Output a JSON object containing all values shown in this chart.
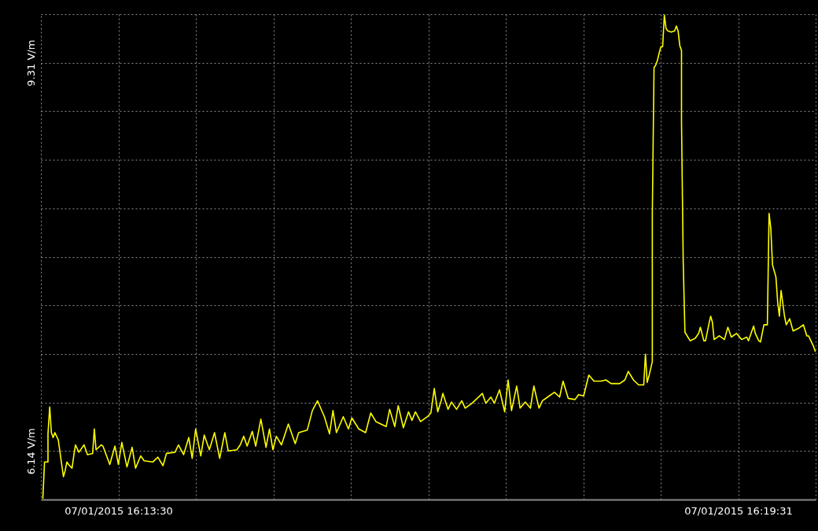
{
  "chart_data": {
    "type": "line",
    "x": [
      "2015-07-01T16:12:46",
      "2015-07-01T16:12:47",
      "2015-07-01T16:12:49",
      "2015-07-01T16:12:49",
      "2015-07-01T16:12:50",
      "2015-07-01T16:12:51",
      "2015-07-01T16:12:52",
      "2015-07-01T16:12:53",
      "2015-07-01T16:12:55",
      "2015-07-01T16:12:56",
      "2015-07-01T16:12:58",
      "2015-07-01T16:12:59",
      "2015-07-01T16:13:00",
      "2015-07-01T16:13:01",
      "2015-07-01T16:13:03",
      "2015-07-01T16:13:04",
      "2015-07-01T16:13:05",
      "2015-07-01T16:13:07",
      "2015-07-01T16:13:10",
      "2015-07-01T16:13:12",
      "2015-07-01T16:13:15",
      "2015-07-01T16:13:16",
      "2015-07-01T16:13:17",
      "2015-07-01T16:13:20",
      "2015-07-01T16:13:21",
      "2015-07-01T16:13:25",
      "2015-07-01T16:13:28",
      "2015-07-01T16:13:30",
      "2015-07-01T16:13:32",
      "2015-07-01T16:13:35",
      "2015-07-01T16:13:38",
      "2015-07-01T16:13:40",
      "2015-07-01T16:13:43",
      "2015-07-01T16:13:45",
      "2015-07-01T16:13:50",
      "2015-07-01T16:13:53",
      "2015-07-01T16:13:56",
      "2015-07-01T16:13:58",
      "2015-07-01T16:14:03",
      "2015-07-01T16:14:05",
      "2015-07-01T16:14:08",
      "2015-07-01T16:14:11",
      "2015-07-01T16:14:13",
      "2015-07-01T16:14:15",
      "2015-07-01T16:14:18",
      "2015-07-01T16:14:20",
      "2015-07-01T16:14:23",
      "2015-07-01T16:14:26",
      "2015-07-01T16:14:29",
      "2015-07-01T16:14:32",
      "2015-07-01T16:14:34",
      "2015-07-01T16:14:39",
      "2015-07-01T16:14:41",
      "2015-07-01T16:14:43",
      "2015-07-01T16:14:45",
      "2015-07-01T16:14:48",
      "2015-07-01T16:14:50",
      "2015-07-01T16:14:53",
      "2015-07-01T16:14:56",
      "2015-07-01T16:14:58",
      "2015-07-01T16:15:00",
      "2015-07-01T16:15:02",
      "2015-07-01T16:15:05",
      "2015-07-01T16:15:09",
      "2015-07-01T16:15:13",
      "2015-07-01T16:15:15",
      "2015-07-01T16:15:20",
      "2015-07-01T16:15:23",
      "2015-07-01T16:15:26",
      "2015-07-01T16:15:30",
      "2015-07-01T16:15:33",
      "2015-07-01T16:15:35",
      "2015-07-01T16:15:37",
      "2015-07-01T16:15:41",
      "2015-07-01T16:15:44",
      "2015-07-01T16:15:46",
      "2015-07-01T16:15:50",
      "2015-07-01T16:15:54",
      "2015-07-01T16:15:57",
      "2015-07-01T16:16:00",
      "2015-07-01T16:16:06",
      "2015-07-01T16:16:08",
      "2015-07-01T16:16:11",
      "2015-07-01T16:16:13",
      "2015-07-01T16:16:16",
      "2015-07-01T16:16:19",
      "2015-07-01T16:16:21",
      "2015-07-01T16:16:23",
      "2015-07-01T16:16:26",
      "2015-07-01T16:16:30",
      "2015-07-01T16:16:32",
      "2015-07-01T16:16:34",
      "2015-07-01T16:16:36",
      "2015-07-01T16:16:38",
      "2015-07-01T16:16:39",
      "2015-07-01T16:16:42",
      "2015-07-01T16:16:44",
      "2015-07-01T16:16:47",
      "2015-07-01T16:16:50",
      "2015-07-01T16:16:52",
      "2015-07-01T16:16:56",
      "2015-07-01T16:17:02",
      "2015-07-01T16:17:04",
      "2015-07-01T16:17:07",
      "2015-07-01T16:17:09",
      "2015-07-01T16:17:12",
      "2015-07-01T16:17:15",
      "2015-07-01T16:17:17",
      "2015-07-01T16:17:19",
      "2015-07-01T16:17:22",
      "2015-07-01T16:17:24",
      "2015-07-01T16:17:27",
      "2015-07-01T16:17:30",
      "2015-07-01T16:17:32",
      "2015-07-01T16:17:35",
      "2015-07-01T16:17:37",
      "2015-07-01T16:17:41",
      "2015-07-01T16:17:44",
      "2015-07-01T16:17:47",
      "2015-07-01T16:17:49",
      "2015-07-01T16:17:52",
      "2015-07-01T16:17:56",
      "2015-07-01T16:17:58",
      "2015-07-01T16:18:01",
      "2015-07-01T16:18:04",
      "2015-07-01T16:18:07",
      "2015-07-01T16:18:11",
      "2015-07-01T16:18:14",
      "2015-07-01T16:18:17",
      "2015-07-01T16:18:22",
      "2015-07-01T16:18:25",
      "2015-07-01T16:18:27",
      "2015-07-01T16:18:30",
      "2015-07-01T16:18:33",
      "2015-07-01T16:18:36",
      "2015-07-01T16:18:37",
      "2015-07-01T16:18:38",
      "2015-07-01T16:18:39",
      "2015-07-01T16:18:41",
      "2015-07-01T16:18:41",
      "2015-07-01T16:18:42",
      "2015-07-01T16:18:43",
      "2015-07-01T16:18:44",
      "2015-07-01T16:18:45",
      "2015-07-01T16:18:46",
      "2015-07-01T16:18:47",
      "2015-07-01T16:18:48",
      "2015-07-01T16:18:49",
      "2015-07-01T16:18:50",
      "2015-07-01T16:18:52",
      "2015-07-01T16:18:54",
      "2015-07-01T16:18:55",
      "2015-07-01T16:18:56",
      "2015-07-01T16:18:57",
      "2015-07-01T16:18:58",
      "2015-07-01T16:18:58",
      "2015-07-01T16:18:59",
      "2015-07-01T16:19:00",
      "2015-07-01T16:19:03",
      "2015-07-01T16:19:06",
      "2015-07-01T16:19:08",
      "2015-07-01T16:19:09",
      "2015-07-01T16:19:11",
      "2015-07-01T16:19:12",
      "2015-07-01T16:19:14",
      "2015-07-01T16:19:15",
      "2015-07-01T16:19:16",
      "2015-07-01T16:19:17",
      "2015-07-01T16:19:20",
      "2015-07-01T16:19:23",
      "2015-07-01T16:19:25",
      "2015-07-01T16:19:27",
      "2015-07-01T16:19:30",
      "2015-07-01T16:19:33",
      "2015-07-01T16:19:36",
      "2015-07-01T16:19:37",
      "2015-07-01T16:19:40",
      "2015-07-01T16:19:41",
      "2015-07-01T16:19:43",
      "2015-07-01T16:19:44",
      "2015-07-01T16:19:46",
      "2015-07-01T16:19:48",
      "2015-07-01T16:19:49",
      "2015-07-01T16:19:50",
      "2015-07-01T16:19:51",
      "2015-07-01T16:19:53",
      "2015-07-01T16:19:54",
      "2015-07-01T16:19:55",
      "2015-07-01T16:19:56",
      "2015-07-01T16:19:58",
      "2015-07-01T16:19:59",
      "2015-07-01T16:20:01",
      "2015-07-01T16:20:03",
      "2015-07-01T16:20:06",
      "2015-07-01T16:20:09",
      "2015-07-01T16:20:11",
      "2015-07-01T16:20:12",
      "2015-07-01T16:20:15",
      "2015-07-01T16:20:16"
    ],
    "series": [
      {
        "color": "#ffff00",
        "values": [
          5.75,
          6.05,
          6.05,
          6.28,
          6.5,
          6.29,
          6.25,
          6.29,
          6.23,
          6.13,
          5.93,
          5.98,
          6.05,
          6.03,
          6.0,
          6.1,
          6.19,
          6.13,
          6.19,
          6.11,
          6.12,
          6.32,
          6.15,
          6.19,
          6.18,
          6.03,
          6.18,
          6.03,
          6.21,
          6.01,
          6.17,
          6.0,
          6.1,
          6.06,
          6.05,
          6.09,
          6.02,
          6.12,
          6.13,
          6.19,
          6.11,
          6.25,
          6.08,
          6.32,
          6.1,
          6.27,
          6.15,
          6.29,
          6.08,
          6.29,
          6.14,
          6.15,
          6.19,
          6.26,
          6.18,
          6.3,
          6.18,
          6.4,
          6.17,
          6.32,
          6.15,
          6.26,
          6.19,
          6.36,
          6.2,
          6.29,
          6.31,
          6.47,
          6.55,
          6.42,
          6.28,
          6.47,
          6.29,
          6.42,
          6.32,
          6.41,
          6.32,
          6.29,
          6.45,
          6.38,
          6.34,
          6.48,
          6.34,
          6.51,
          6.33,
          6.46,
          6.39,
          6.46,
          6.38,
          6.42,
          6.45,
          6.65,
          6.46,
          6.55,
          6.61,
          6.48,
          6.54,
          6.48,
          6.55,
          6.49,
          6.53,
          6.61,
          6.53,
          6.58,
          6.53,
          6.64,
          6.46,
          6.72,
          6.47,
          6.67,
          6.49,
          6.54,
          6.49,
          6.67,
          6.49,
          6.55,
          6.59,
          6.62,
          6.58,
          6.71,
          6.57,
          6.56,
          6.6,
          6.59,
          6.76,
          6.71,
          6.71,
          6.72,
          6.69,
          6.69,
          6.72,
          6.79,
          6.72,
          6.68,
          6.68,
          6.93,
          6.7,
          6.75,
          6.87,
          8.08,
          9.27,
          9.29,
          9.33,
          9.39,
          9.44,
          9.44,
          9.7,
          9.59,
          9.57,
          9.56,
          9.57,
          9.61,
          9.57,
          9.45,
          9.41,
          8.83,
          7.68,
          7.11,
          7.04,
          7.06,
          7.1,
          7.15,
          7.04,
          7.04,
          7.18,
          7.24,
          7.19,
          7.05,
          7.08,
          7.05,
          7.15,
          7.07,
          7.1,
          7.05,
          7.07,
          7.04,
          7.16,
          7.1,
          7.04,
          7.03,
          7.17,
          7.17,
          8.08,
          7.96,
          7.66,
          7.56,
          7.36,
          7.24,
          7.45,
          7.24,
          7.17,
          7.22,
          7.12,
          7.14,
          7.17,
          7.08,
          7.08,
          6.99,
          6.95
        ]
      }
    ],
    "xlim": [
      "2015-07-01T16:12:44.875",
      "2015-07-01T16:20:16.125"
    ],
    "xticks": [
      {
        "value": "2015-07-01T16:13:30",
        "label": "07/01/2015 16:13:30"
      },
      {
        "value": "2015-07-01T16:14:15.125",
        "label": null
      },
      {
        "value": "2015-07-01T16:15:00.250",
        "label": null
      },
      {
        "value": "2015-07-01T16:15:45.375",
        "label": null
      },
      {
        "value": "2015-07-01T16:16:30.500",
        "label": null
      },
      {
        "value": "2015-07-01T16:17:15.625",
        "label": null
      },
      {
        "value": "2015-07-01T16:18:00.750",
        "label": null
      },
      {
        "value": "2015-07-01T16:18:45.875",
        "label": null
      },
      {
        "value": "2015-07-01T16:19:31",
        "label": "07/01/2015 16:19:31"
      }
    ],
    "ylim": [
      5.74375,
      9.70625
    ],
    "yticks": [
      {
        "value": 6.14,
        "label": "6.14 V/m"
      },
      {
        "value": 6.53625,
        "label": null
      },
      {
        "value": 6.9325,
        "label": null
      },
      {
        "value": 7.32875,
        "label": null
      },
      {
        "value": 7.725,
        "label": null
      },
      {
        "value": 8.12125,
        "label": null
      },
      {
        "value": 8.5175,
        "label": null
      },
      {
        "value": 8.91375,
        "label": null
      },
      {
        "value": 9.31,
        "label": "9.31 V/m"
      }
    ],
    "grid": true
  }
}
